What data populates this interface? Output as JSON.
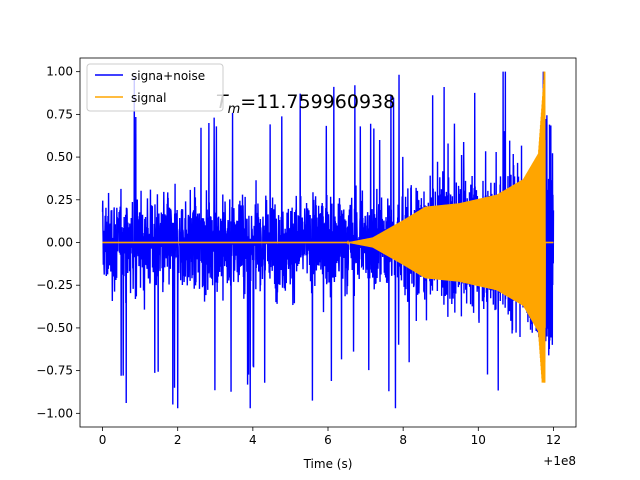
{
  "chart_data": {
    "type": "line",
    "xlabel": "Time (s)",
    "ylabel": "",
    "x_offset_label": "+1e8",
    "xlim": [
      -0.6,
      12.6
    ],
    "ylim": [
      -1.08,
      1.08
    ],
    "x_ticks": [
      0,
      2,
      4,
      6,
      8,
      10,
      12
    ],
    "x_tick_labels": [
      "0",
      "2",
      "4",
      "6",
      "8",
      "10",
      "12"
    ],
    "y_ticks": [
      1.0,
      0.75,
      0.5,
      0.25,
      0.0,
      -0.25,
      -0.5,
      -0.75,
      -1.0
    ],
    "y_tick_labels": [
      "1.00",
      "0.75",
      "0.50",
      "0.25",
      "0.00",
      "−0.25",
      "−0.50",
      "−0.75",
      "−1.00"
    ],
    "annotation": "T_m=11.759960938",
    "annotation_parts": {
      "T": "T",
      "sub": "m",
      "rest": "=11.759960938"
    },
    "grid": false,
    "legend_placement": "top-left",
    "series": [
      {
        "name": "signa+noise",
        "color": "#0000ff",
        "description_points": {
          "x_range": [
            0,
            12
          ],
          "noise_typical_abs": 0.45,
          "noise_max": 1.0,
          "noise_min": -0.97,
          "envelope_x": [
            0,
            6.5,
            7.2,
            8.0,
            8.6,
            9.5,
            10.5,
            11.2,
            11.6,
            11.76
          ],
          "envelope_y": [
            0.0,
            0.0,
            0.03,
            0.13,
            0.21,
            0.23,
            0.28,
            0.37,
            0.52,
            0.6
          ]
        }
      },
      {
        "name": "signal",
        "color": "#ffa500",
        "description_points": {
          "x_range": [
            0,
            12
          ],
          "envelope_x": [
            0,
            6.5,
            7.2,
            8.0,
            8.6,
            9.5,
            10.5,
            11.2,
            11.6,
            11.76,
            11.8,
            12.0
          ],
          "envelope_y": [
            0.0,
            0.0,
            0.03,
            0.13,
            0.21,
            0.23,
            0.28,
            0.37,
            0.52,
            1.0,
            0.0,
            0.0
          ],
          "peak": [
            11.76,
            1.0
          ],
          "trough": [
            11.76,
            -0.82
          ]
        }
      }
    ]
  }
}
